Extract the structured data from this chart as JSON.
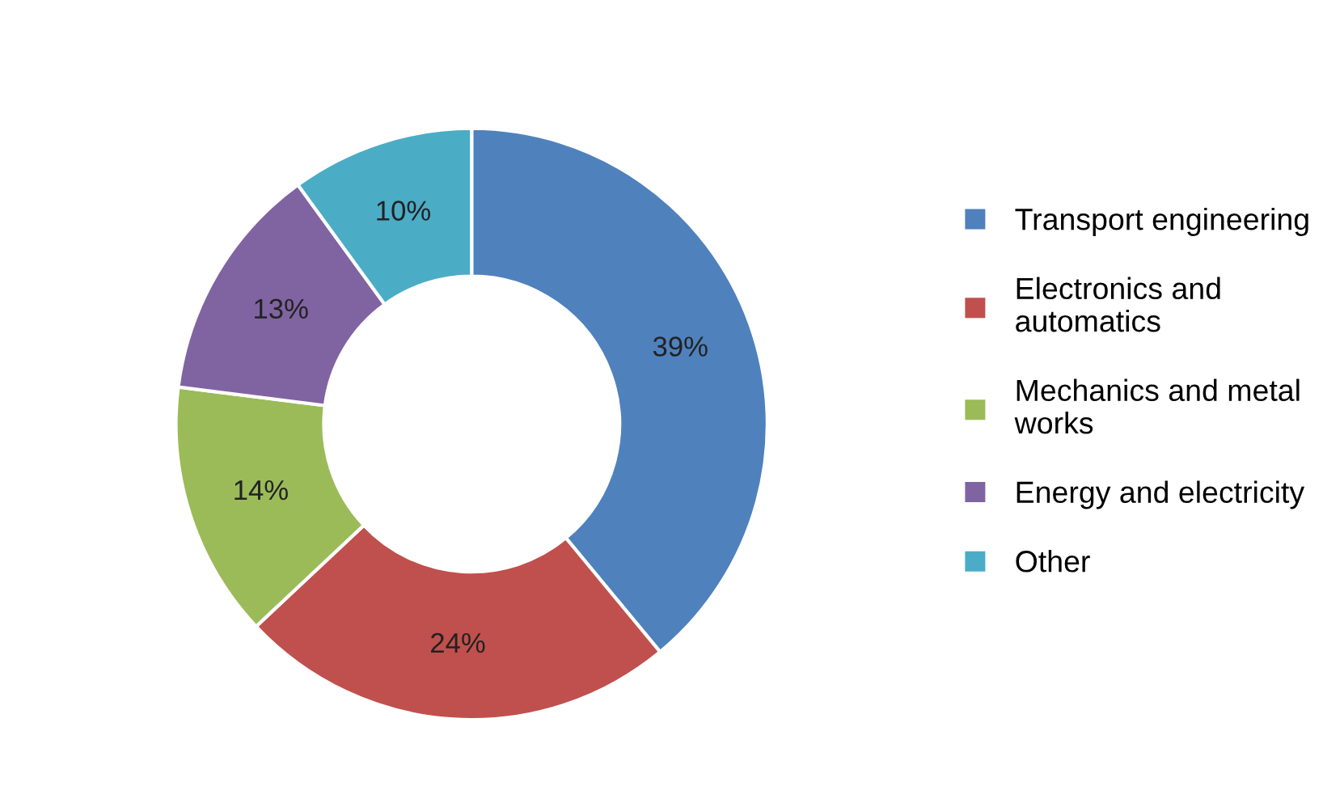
{
  "chart_data": {
    "type": "donut",
    "categories": [
      "Transport engineering",
      "Electronics and automatics",
      "Mechanics and metal works",
      "Energy and electricity",
      "Other"
    ],
    "values": [
      39,
      24,
      14,
      13,
      10
    ],
    "colors": [
      "#4f81bd",
      "#c0504d",
      "#9bbb59",
      "#8064a2",
      "#4bacc6"
    ],
    "value_labels": [
      "39%",
      "24%",
      "14%",
      "13%",
      "10%"
    ],
    "legend": "right"
  }
}
